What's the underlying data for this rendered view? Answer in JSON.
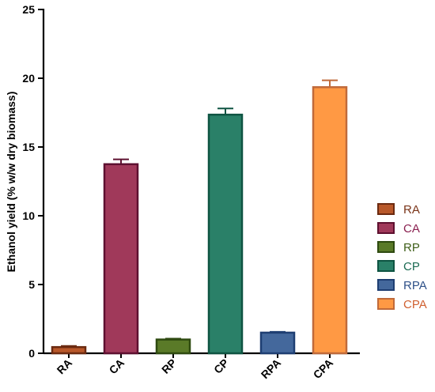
{
  "chart_data": {
    "type": "bar",
    "title": "",
    "xlabel": "",
    "ylabel": "Ethanol yield (% w/w  dry biomass)",
    "ylim": [
      0,
      25
    ],
    "yticks": [
      0,
      5,
      10,
      15,
      20,
      25
    ],
    "grid": false,
    "legend_placement": "right",
    "categories": [
      "RA",
      "CA",
      "RP",
      "CP",
      "RPA",
      "CPA"
    ],
    "values": [
      0.45,
      13.75,
      1.0,
      17.35,
      1.5,
      19.35
    ],
    "errors": [
      0.08,
      0.35,
      0.06,
      0.45,
      0.06,
      0.5
    ],
    "fill_colors": [
      "#b8582a",
      "#a0395a",
      "#5a7a28",
      "#2a8068",
      "#44689c",
      "#ff9944"
    ],
    "stroke_colors": [
      "#6b2a10",
      "#5e1030",
      "#2e4a10",
      "#0e5442",
      "#1e3e72",
      "#c06a3a"
    ],
    "legend": [
      {
        "label": "RA",
        "fill": "#b8582a",
        "stroke": "#6b2a10",
        "text_color": "#7a3418"
      },
      {
        "label": "CA",
        "fill": "#a0395a",
        "stroke": "#5e1030",
        "text_color": "#8a2050"
      },
      {
        "label": "RP",
        "fill": "#5a7a28",
        "stroke": "#2e4a10",
        "text_color": "#3e5e18"
      },
      {
        "label": "CP",
        "fill": "#2a8068",
        "stroke": "#0e5442",
        "text_color": "#1a6a52"
      },
      {
        "label": "RPA",
        "fill": "#44689c",
        "stroke": "#1e3e72",
        "text_color": "#2e5088"
      },
      {
        "label": "CPA",
        "fill": "#ff9944",
        "stroke": "#c06a3a",
        "text_color": "#d06030"
      }
    ]
  }
}
